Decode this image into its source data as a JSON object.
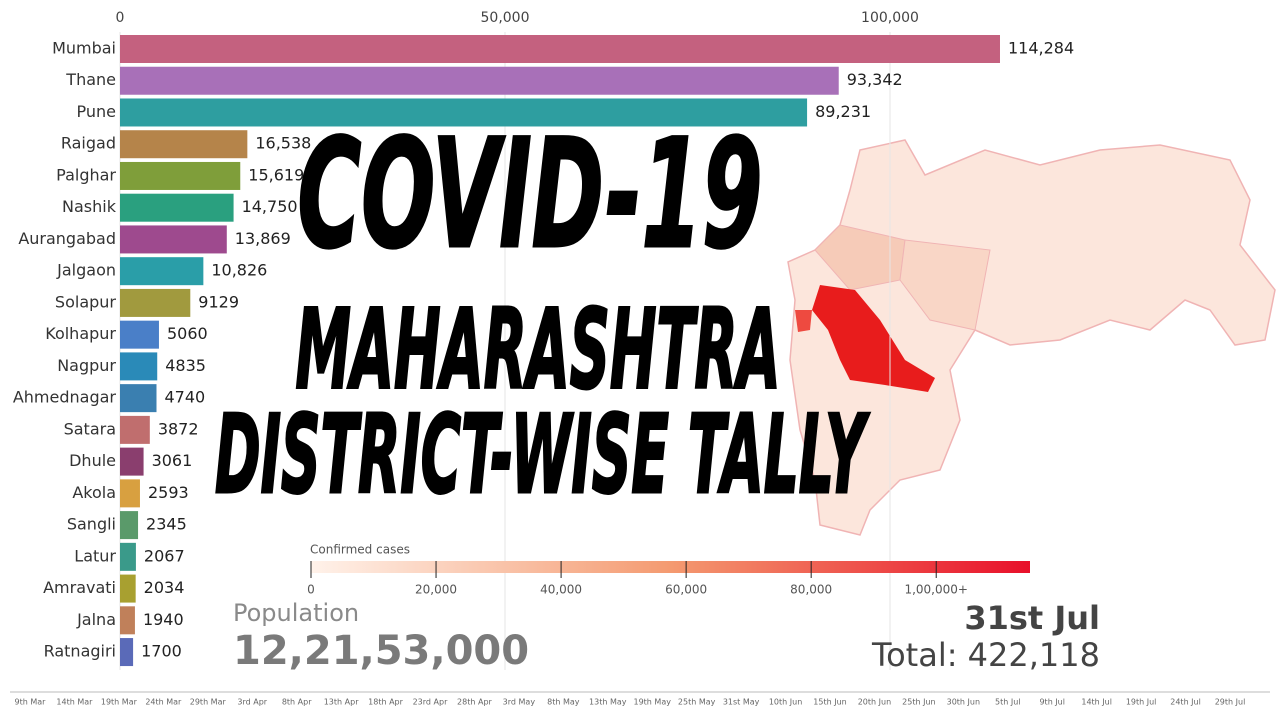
{
  "chart_data": {
    "type": "bar",
    "orientation": "horizontal",
    "categories": [
      "Mumbai",
      "Thane",
      "Pune",
      "Raigad",
      "Palghar",
      "Nashik",
      "Aurangabad",
      "Jalgaon",
      "Solapur",
      "Kolhapur",
      "Nagpur",
      "Ahmednagar",
      "Satara",
      "Dhule",
      "Akola",
      "Sangli",
      "Latur",
      "Amravati",
      "Jalna",
      "Ratnagiri"
    ],
    "values": [
      114284,
      93342,
      89231,
      16538,
      15619,
      14750,
      13869,
      10826,
      9129,
      5060,
      4835,
      4740,
      3872,
      3061,
      2593,
      2345,
      2067,
      2034,
      1940,
      1700
    ],
    "value_labels": [
      "114,284",
      "93,342",
      "89,231",
      "16,538",
      "15,619",
      "14,750",
      "13,869",
      "10,826",
      "9129",
      "5060",
      "4835",
      "4740",
      "3872",
      "3061",
      "2593",
      "2345",
      "2067",
      "2034",
      "1940",
      "1700"
    ],
    "colors": [
      "#c4617f",
      "#a870b8",
      "#2e9ea0",
      "#b5844a",
      "#7f9e3a",
      "#2aa07f",
      "#9e4a8e",
      "#2a9ea8",
      "#a19a3e",
      "#4a7fc8",
      "#2a8ab8",
      "#3a7fb0",
      "#c06e6e",
      "#8a3e6e",
      "#d8a040",
      "#5a9a6a",
      "#3a9a8a",
      "#a8a030",
      "#c0805a",
      "#5a6ab8"
    ],
    "xlim": [
      0,
      150000
    ],
    "xticks": [
      0,
      {
        "value": 50000,
        "label": "50,000"
      },
      {
        "value": 100000,
        "label": "100,000"
      }
    ],
    "grid": true,
    "title_lines": [
      "COVID-19",
      "MAHARASHTRA",
      "DISTRICT-WISE TALLY"
    ],
    "legend": {
      "title": "Confirmed cases",
      "lim": [
        0,
        115000
      ],
      "ticks": [
        0,
        {
          "value": 20000,
          "label": "20,000"
        },
        {
          "value": 40000,
          "label": "40,000"
        },
        {
          "value": 60000,
          "label": "60,000"
        },
        {
          "value": 80000,
          "label": "80,000"
        },
        {
          "value": 100000,
          "label": "1,00,000+"
        }
      ]
    },
    "population_label": "Population",
    "population": "12,21,53,000",
    "date": "31st Jul",
    "total": "Total: 422,118",
    "timeline": [
      "9th Mar",
      "14th Mar",
      "19th Mar",
      "24th Mar",
      "29th Mar",
      "3rd Apr",
      "8th Apr",
      "13th Apr",
      "18th Apr",
      "23rd Apr",
      "28th Apr",
      "3rd May",
      "8th May",
      "13th May",
      "19th May",
      "25th May",
      "31st May",
      "10th Jun",
      "15th Jun",
      "20th Jun",
      "25th Jun",
      "30th Jun",
      "5th Jul",
      "9th Jul",
      "14th Jul",
      "19th Jul",
      "24th Jul",
      "29th Jul"
    ]
  }
}
